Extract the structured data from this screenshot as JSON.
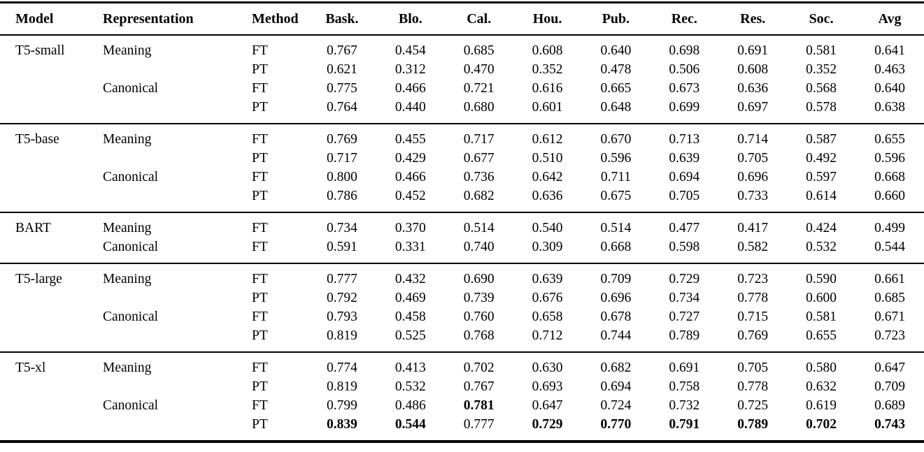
{
  "page": {
    "background_color": "#ffffff",
    "text_color": "#000000"
  },
  "table": {
    "columns": [
      "Model",
      "Representation",
      "Method",
      "Bask.",
      "Blo.",
      "Cal.",
      "Hou.",
      "Pub.",
      "Rec.",
      "Res.",
      "Soc.",
      "Avg"
    ],
    "groups": [
      {
        "model": "T5-small",
        "rows": [
          {
            "representation": "Meaning",
            "method": "FT",
            "values": [
              "0.767",
              "0.454",
              "0.685",
              "0.608",
              "0.640",
              "0.698",
              "0.691",
              "0.581",
              "0.641"
            ],
            "bold_indices": []
          },
          {
            "representation": "",
            "method": "PT",
            "values": [
              "0.621",
              "0.312",
              "0.470",
              "0.352",
              "0.478",
              "0.506",
              "0.608",
              "0.352",
              "0.463"
            ],
            "bold_indices": []
          },
          {
            "representation": "Canonical",
            "method": "FT",
            "values": [
              "0.775",
              "0.466",
              "0.721",
              "0.616",
              "0.665",
              "0.673",
              "0.636",
              "0.568",
              "0.640"
            ],
            "bold_indices": []
          },
          {
            "representation": "",
            "method": "PT",
            "values": [
              "0.764",
              "0.440",
              "0.680",
              "0.601",
              "0.648",
              "0.699",
              "0.697",
              "0.578",
              "0.638"
            ],
            "bold_indices": []
          }
        ]
      },
      {
        "model": "T5-base",
        "rows": [
          {
            "representation": "Meaning",
            "method": "FT",
            "values": [
              "0.769",
              "0.455",
              "0.717",
              "0.612",
              "0.670",
              "0.713",
              "0.714",
              "0.587",
              "0.655"
            ],
            "bold_indices": []
          },
          {
            "representation": "",
            "method": "PT",
            "values": [
              "0.717",
              "0.429",
              "0.677",
              "0.510",
              "0.596",
              "0.639",
              "0.705",
              "0.492",
              "0.596"
            ],
            "bold_indices": []
          },
          {
            "representation": "Canonical",
            "method": "FT",
            "values": [
              "0.800",
              "0.466",
              "0.736",
              "0.642",
              "0.711",
              "0.694",
              "0.696",
              "0.597",
              "0.668"
            ],
            "bold_indices": []
          },
          {
            "representation": "",
            "method": "PT",
            "values": [
              "0.786",
              "0.452",
              "0.682",
              "0.636",
              "0.675",
              "0.705",
              "0.733",
              "0.614",
              "0.660"
            ],
            "bold_indices": []
          }
        ]
      },
      {
        "model": "BART",
        "rows": [
          {
            "representation": "Meaning",
            "method": "FT",
            "values": [
              "0.734",
              "0.370",
              "0.514",
              "0.540",
              "0.514",
              "0.477",
              "0.417",
              "0.424",
              "0.499"
            ],
            "bold_indices": []
          },
          {
            "representation": "Canonical",
            "method": "FT",
            "values": [
              "0.591",
              "0.331",
              "0.740",
              "0.309",
              "0.668",
              "0.598",
              "0.582",
              "0.532",
              "0.544"
            ],
            "bold_indices": []
          }
        ]
      },
      {
        "model": "T5-large",
        "rows": [
          {
            "representation": "Meaning",
            "method": "FT",
            "values": [
              "0.777",
              "0.432",
              "0.690",
              "0.639",
              "0.709",
              "0.729",
              "0.723",
              "0.590",
              "0.661"
            ],
            "bold_indices": []
          },
          {
            "representation": "",
            "method": "PT",
            "values": [
              "0.792",
              "0.469",
              "0.739",
              "0.676",
              "0.696",
              "0.734",
              "0.778",
              "0.600",
              "0.685"
            ],
            "bold_indices": []
          },
          {
            "representation": "Canonical",
            "method": "FT",
            "values": [
              "0.793",
              "0.458",
              "0.760",
              "0.658",
              "0.678",
              "0.727",
              "0.715",
              "0.581",
              "0.671"
            ],
            "bold_indices": []
          },
          {
            "representation": "",
            "method": "PT",
            "values": [
              "0.819",
              "0.525",
              "0.768",
              "0.712",
              "0.744",
              "0.789",
              "0.769",
              "0.655",
              "0.723"
            ],
            "bold_indices": []
          }
        ]
      },
      {
        "model": "T5-xl",
        "rows": [
          {
            "representation": "Meaning",
            "method": "FT",
            "values": [
              "0.774",
              "0.413",
              "0.702",
              "0.630",
              "0.682",
              "0.691",
              "0.705",
              "0.580",
              "0.647"
            ],
            "bold_indices": []
          },
          {
            "representation": "",
            "method": "PT",
            "values": [
              "0.819",
              "0.532",
              "0.767",
              "0.693",
              "0.694",
              "0.758",
              "0.778",
              "0.632",
              "0.709"
            ],
            "bold_indices": []
          },
          {
            "representation": "Canonical",
            "method": "FT",
            "values": [
              "0.799",
              "0.486",
              "0.781",
              "0.647",
              "0.724",
              "0.732",
              "0.725",
              "0.619",
              "0.689"
            ],
            "bold_indices": [
              2
            ]
          },
          {
            "representation": "",
            "method": "PT",
            "values": [
              "0.839",
              "0.544",
              "0.777",
              "0.729",
              "0.770",
              "0.791",
              "0.789",
              "0.702",
              "0.743"
            ],
            "bold_indices": [
              0,
              1,
              3,
              4,
              5,
              6,
              7,
              8
            ]
          }
        ]
      }
    ]
  }
}
